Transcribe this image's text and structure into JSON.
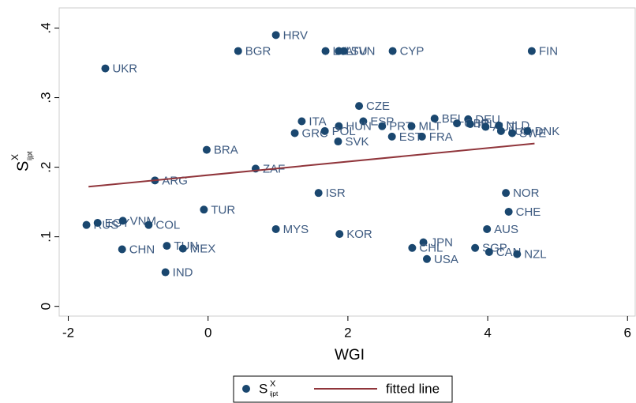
{
  "chart_data": {
    "type": "scatter",
    "x_label": "WGI",
    "y_label": {
      "base": "S",
      "sup": "X",
      "sub": "ijpt"
    },
    "xlim": [
      -2.13,
      6.11
    ],
    "ylim": [
      -0.014,
      0.429
    ],
    "xticks": [
      -2,
      0,
      2,
      4,
      6
    ],
    "yticks": [
      0,
      {
        "value": 0.1,
        "label": ".1"
      },
      {
        "value": 0.2,
        "label": ".2"
      },
      {
        "value": 0.3,
        "label": ".3"
      },
      {
        "value": 0.4,
        "label": ".4"
      }
    ],
    "series": [
      {
        "name": {
          "base": "S",
          "sup": "X",
          "sub": "ijpt"
        },
        "color": "#1a476f",
        "labels": [
          "HRV",
          "BGR",
          "LVA",
          "LTU",
          "SVN",
          "CYP",
          "FIN",
          "UKR",
          "CZE",
          "BEL",
          "DEU",
          "ESP",
          "ITA",
          "HUN",
          "PRT",
          "MLT",
          "GBR",
          "IRL",
          "AUT",
          "NLD",
          "LUX",
          "SWE",
          "DNK",
          "GRC",
          "POL",
          "SVK",
          "EST",
          "FRA",
          "BRA",
          "ZAF",
          "ARG",
          "ISR",
          "NOR",
          "CHE",
          "TUR",
          "RUS",
          "EGY",
          "VNM",
          "COL",
          "MYS",
          "KOR",
          "AUS",
          "CHN",
          "TUN",
          "MEX",
          "IND",
          "JPN",
          "CHL",
          "USA",
          "SGP",
          "CAN",
          "NZL"
        ],
        "x": [
          0.97,
          0.43,
          1.68,
          1.87,
          1.94,
          2.64,
          4.63,
          -1.47,
          2.16,
          3.24,
          3.72,
          2.22,
          1.34,
          1.87,
          2.49,
          2.91,
          3.56,
          3.75,
          3.97,
          4.16,
          4.19,
          4.35,
          4.57,
          1.24,
          1.67,
          1.86,
          2.63,
          3.06,
          -0.02,
          0.68,
          -0.76,
          1.58,
          4.26,
          4.3,
          -0.06,
          -1.74,
          -1.58,
          -1.22,
          -0.85,
          0.97,
          1.88,
          3.99,
          -1.23,
          -0.59,
          -0.36,
          -0.61,
          3.08,
          2.92,
          3.13,
          3.82,
          4.02,
          4.42
        ],
        "values": [
          0.39,
          0.367,
          0.367,
          0.367,
          0.367,
          0.367,
          0.367,
          0.342,
          0.288,
          0.27,
          0.269,
          0.266,
          0.266,
          0.259,
          0.259,
          0.259,
          0.263,
          0.262,
          0.258,
          0.26,
          0.252,
          0.249,
          0.252,
          0.249,
          0.252,
          0.237,
          0.244,
          0.244,
          0.225,
          0.198,
          0.181,
          0.163,
          0.163,
          0.136,
          0.139,
          0.117,
          0.12,
          0.123,
          0.117,
          0.111,
          0.104,
          0.111,
          0.082,
          0.087,
          0.083,
          0.049,
          0.092,
          0.084,
          0.068,
          0.084,
          0.078,
          0.075
        ]
      },
      {
        "name": "fitted line",
        "color": "#90353b",
        "x": [
          -1.71,
          4.67
        ],
        "values": [
          0.172,
          0.234
        ]
      }
    ]
  }
}
